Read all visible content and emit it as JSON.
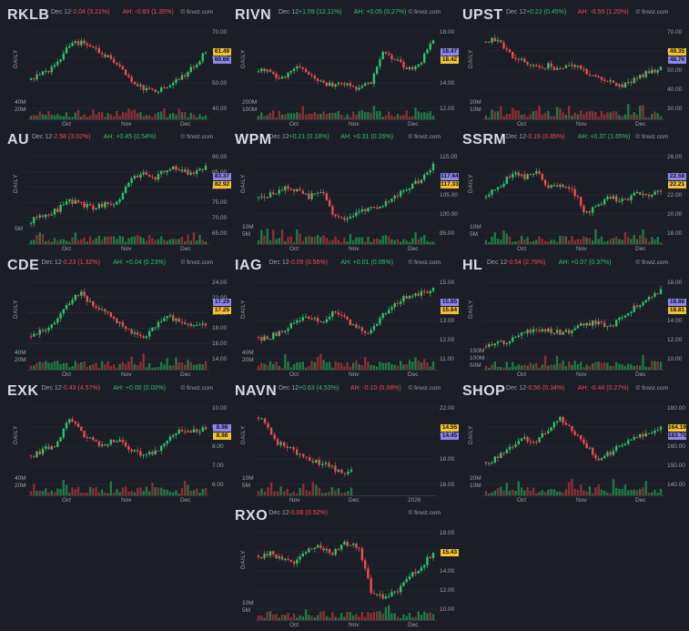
{
  "brand": "© finviz.com",
  "period_label": "DAILY",
  "date": "Dec 12",
  "charts": [
    {
      "ticker": "RKLB",
      "chg": "-2.04 (3.21%)",
      "chg_dir": "neg",
      "ah": "AH: -0.83 (1.35%)",
      "ah_dir": "neg",
      "yticks": [
        "70.00",
        "60.00",
        "50.00",
        "40.00"
      ],
      "vticks": [
        "40M",
        "20M"
      ],
      "xticks": [
        "Oct",
        "Nov",
        "Dec"
      ],
      "badges": [
        {
          "text": "61.49",
          "color": "y"
        },
        {
          "text": "60.66",
          "color": "b"
        }
      ]
    },
    {
      "ticker": "RIVN",
      "chg": "+1.59 (12.11%)",
      "chg_dir": "pos",
      "ah": "AH: +0.05 (0.27%)",
      "ah_dir": "pos",
      "yticks": [
        "18.00",
        "16.00",
        "14.00",
        "12.00"
      ],
      "vticks": [
        "200M",
        "100M"
      ],
      "xticks": [
        "Oct",
        "Nov",
        "Dec"
      ],
      "badges": [
        {
          "text": "18.47",
          "color": "b"
        },
        {
          "text": "18.42",
          "color": "y"
        }
      ]
    },
    {
      "ticker": "UPST",
      "chg": "+0.22 (0.45%)",
      "chg_dir": "pos",
      "ah": "AH: -0.59 (1.20%)",
      "ah_dir": "neg",
      "yticks": [
        "70.00",
        "60.00",
        "50.00",
        "40.00",
        "30.00"
      ],
      "vticks": [
        "20M",
        "10M"
      ],
      "xticks": [
        "Oct",
        "Nov",
        "Dec"
      ],
      "badges": [
        {
          "text": "49.35",
          "color": "y"
        },
        {
          "text": "48.76",
          "color": "b"
        }
      ]
    },
    {
      "ticker": "AU",
      "chg": "-2.58 (3.02%)",
      "chg_dir": "neg",
      "ah": "AH: +0.45 (0.54%)",
      "ah_dir": "pos",
      "yticks": [
        "90.00",
        "85.00",
        "80.00",
        "75.00",
        "70.00",
        "65.00"
      ],
      "vticks": [
        "5M"
      ],
      "xticks": [
        "Oct",
        "Nov",
        "Dec"
      ],
      "badges": [
        {
          "text": "83.37",
          "color": "b"
        },
        {
          "text": "82.92",
          "color": "y"
        }
      ]
    },
    {
      "ticker": "WPM",
      "chg": "+0.21 (0.18%)",
      "chg_dir": "pos",
      "ah": "AH: +0.31 (0.26%)",
      "ah_dir": "pos",
      "yticks": [
        "115.00",
        "110.00",
        "105.00",
        "100.00",
        "95.00"
      ],
      "vticks": [
        "10M",
        "5M"
      ],
      "xticks": [
        "Oct",
        "Nov",
        "Dec"
      ],
      "badges": [
        {
          "text": "117.64",
          "color": "b"
        },
        {
          "text": "117.33",
          "color": "y"
        }
      ]
    },
    {
      "ticker": "SSRM",
      "chg": "-0.19 (0.85%)",
      "chg_dir": "neg",
      "ah": "AH: +0.37 (1.65%)",
      "ah_dir": "pos",
      "yticks": [
        "26.00",
        "24.00",
        "22.00",
        "20.00",
        "18.00"
      ],
      "vticks": [
        "10M",
        "5M"
      ],
      "xticks": [
        "Oct",
        "Nov",
        "Dec"
      ],
      "badges": [
        {
          "text": "22.58",
          "color": "b"
        },
        {
          "text": "22.21",
          "color": "y"
        }
      ]
    },
    {
      "ticker": "CDE",
      "chg": "-0.23 (1.32%)",
      "chg_dir": "neg",
      "ah": "AH: +0.04 (0.23%)",
      "ah_dir": "pos",
      "yticks": [
        "24.00",
        "22.00",
        "20.00",
        "18.00",
        "16.00",
        "14.00"
      ],
      "vticks": [
        "40M",
        "20M"
      ],
      "xticks": [
        "Oct",
        "Nov",
        "Dec"
      ],
      "badges": [
        {
          "text": "17.29",
          "color": "b"
        },
        {
          "text": "17.25",
          "color": "y"
        }
      ]
    },
    {
      "ticker": "IAG",
      "chg": "-0.09 (0.56%)",
      "chg_dir": "neg",
      "ah": "AH: +0.01 (0.06%)",
      "ah_dir": "pos",
      "yticks": [
        "15.00",
        "14.00",
        "13.00",
        "12.00",
        "11.00"
      ],
      "vticks": [
        "40M",
        "20M"
      ],
      "xticks": [
        "Oct",
        "Nov",
        "Dec"
      ],
      "badges": [
        {
          "text": "15.85",
          "color": "b"
        },
        {
          "text": "15.84",
          "color": "y"
        }
      ]
    },
    {
      "ticker": "HL",
      "chg": "-0.54 (2.79%)",
      "chg_dir": "neg",
      "ah": "AH: +0.07 (0.37%)",
      "ah_dir": "pos",
      "yticks": [
        "18.00",
        "16.00",
        "14.00",
        "12.00",
        "10.00"
      ],
      "vticks": [
        "150M",
        "100M",
        "50M"
      ],
      "xticks": [
        "Oct",
        "Nov",
        "Dec"
      ],
      "badges": [
        {
          "text": "18.88",
          "color": "b"
        },
        {
          "text": "18.81",
          "color": "y"
        }
      ]
    },
    {
      "ticker": "EXK",
      "chg": "-0.43 (4.57%)",
      "chg_dir": "neg",
      "ah": "AH: +0.00 (0.00%)",
      "ah_dir": "pos",
      "yticks": [
        "10.00",
        "9.00",
        "8.00",
        "7.00",
        "6.00"
      ],
      "vticks": [
        "40M",
        "20M"
      ],
      "xticks": [
        "Oct",
        "Nov",
        "Dec"
      ],
      "badges": [
        {
          "text": "8.98",
          "color": "b"
        },
        {
          "text": "8.98",
          "color": "y"
        }
      ]
    },
    {
      "ticker": "NAVN",
      "chg": "+0.63 (4.53%)",
      "chg_dir": "pos",
      "ah": "AH: -0.10 (0.68%)",
      "ah_dir": "neg",
      "yticks": [
        "22.00",
        "20.00",
        "18.00",
        "16.00"
      ],
      "vticks": [
        "10M",
        "5M"
      ],
      "xticks": [
        "Nov",
        "Dec",
        "2026"
      ],
      "badges": [
        {
          "text": "14.55",
          "color": "y"
        },
        {
          "text": "14.45",
          "color": "b"
        }
      ]
    },
    {
      "ticker": "SHOP",
      "chg": "-0.56 (0.34%)",
      "chg_dir": "neg",
      "ah": "AH: -0.44 (0.27%)",
      "ah_dir": "neg",
      "yticks": [
        "180.00",
        "170.00",
        "160.00",
        "150.00",
        "140.00"
      ],
      "vticks": [
        "20M",
        "10M"
      ],
      "xticks": [
        "Oct",
        "Nov",
        "Dec"
      ],
      "badges": [
        {
          "text": "164.19",
          "color": "y"
        },
        {
          "text": "163.75",
          "color": "b"
        }
      ]
    },
    {
      "ticker": "RXO",
      "chg": "-0.08 (0.52%)",
      "chg_dir": "neg",
      "ah": "",
      "ah_dir": "neg",
      "yticks": [
        "18.00",
        "16.00",
        "14.00",
        "12.00",
        "10.00"
      ],
      "vticks": [
        "10M",
        "5M"
      ],
      "xticks": [
        "Oct",
        "Nov",
        "Dec"
      ],
      "badges": [
        {
          "text": "15.43",
          "color": "y"
        }
      ]
    }
  ]
}
